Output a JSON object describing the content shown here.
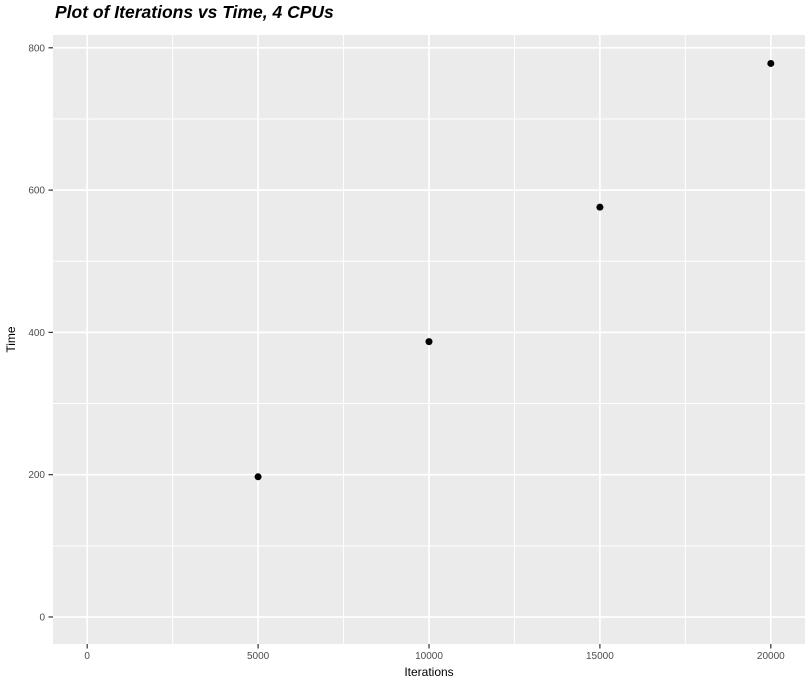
{
  "chart_data": {
    "type": "scatter",
    "title": "Plot of Iterations vs Time, 4 CPUs",
    "xlabel": "Iterations",
    "ylabel": "Time",
    "points": [
      {
        "x": 5000,
        "y": 197
      },
      {
        "x": 10000,
        "y": 387
      },
      {
        "x": 15000,
        "y": 576
      },
      {
        "x": 20000,
        "y": 778
      }
    ],
    "xticks": [
      0,
      5000,
      10000,
      15000,
      20000
    ],
    "yticks": [
      0,
      200,
      400,
      600,
      800
    ],
    "xminor": [
      2500,
      7500,
      12500,
      17500
    ],
    "yminor": [
      100,
      300,
      500,
      700
    ],
    "xlim": [
      -1000,
      21000
    ],
    "ylim": [
      -38,
      818
    ],
    "grid": true,
    "legend": "none",
    "style": {
      "page_bg": "#FFFFFF",
      "panel_bg": "#EBEBEB",
      "grid_color": "#FFFFFF",
      "point_color": "#000000",
      "tick_color": "#333333",
      "tick_label_color": "#4D4D4D",
      "axis_title_color": "#000000",
      "title_color": "#000000"
    }
  }
}
